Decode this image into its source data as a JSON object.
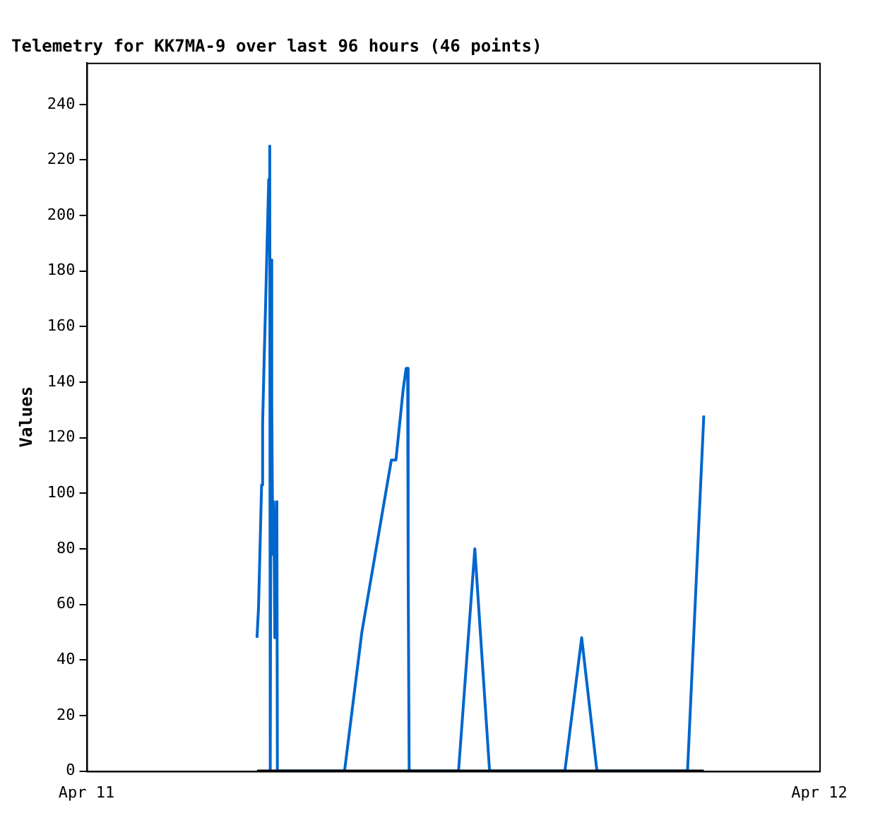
{
  "chart_data": {
    "type": "line",
    "title": "Telemetry for KK7MA-9 over last 96 hours (46 points)",
    "ylabel": "Values",
    "xlim": [
      "--04-11",
      "--04-12"
    ],
    "xticks": [
      {
        "value": "--04-11",
        "label": "Apr 11"
      },
      {
        "value": "--04-12",
        "label": "Apr 12"
      }
    ],
    "ylim": [
      0,
      255
    ],
    "yticks": [
      0,
      20,
      40,
      60,
      80,
      100,
      120,
      140,
      160,
      180,
      200,
      220,
      240
    ],
    "grid": false,
    "legend": false,
    "marker": "none",
    "series": [
      {
        "color": "#0066cc",
        "x": [
          "--04-11T05:35",
          "--04-11T05:38",
          "--04-11T05:41",
          "--04-11T05:44",
          "--04-11T05:46",
          "--04-11T05:49",
          "--04-11T05:52",
          "--04-11T05:55",
          "--04-11T05:58",
          "--04-11T06:00",
          "--04-11T06:01",
          "--04-11T06:03",
          "--04-11T06:04",
          "--04-11T06:06",
          "--04-11T06:08",
          "--04-11T06:10",
          "--04-11T06:14",
          "--04-11T06:15",
          "--04-11T08:27",
          "--04-11T09:01",
          "--04-11T09:59",
          "--04-11T10:08",
          "--04-11T10:22",
          "--04-11T10:28",
          "--04-11T10:31",
          "--04-11T10:32",
          "--04-11T10:34",
          "--04-11T12:11",
          "--04-11T12:43",
          "--04-11T13:12",
          "--04-11T15:40",
          "--04-11T16:13",
          "--04-11T16:43",
          "--04-11T19:41",
          "--04-11T20:13"
        ],
        "values": [
          48,
          59,
          81,
          103,
          125,
          148,
          169,
          191,
          213,
          225,
          0,
          184,
          132,
          78,
          97,
          48,
          97,
          0,
          0,
          50,
          112,
          112,
          137,
          145,
          145,
          73,
          0,
          0,
          80,
          0,
          0,
          48,
          0,
          0,
          128
        ]
      },
      {
        "color": "#000000",
        "x": [
          "--04-11T05:35",
          "--04-11T20:13"
        ],
        "values": [
          0,
          0
        ]
      }
    ]
  }
}
